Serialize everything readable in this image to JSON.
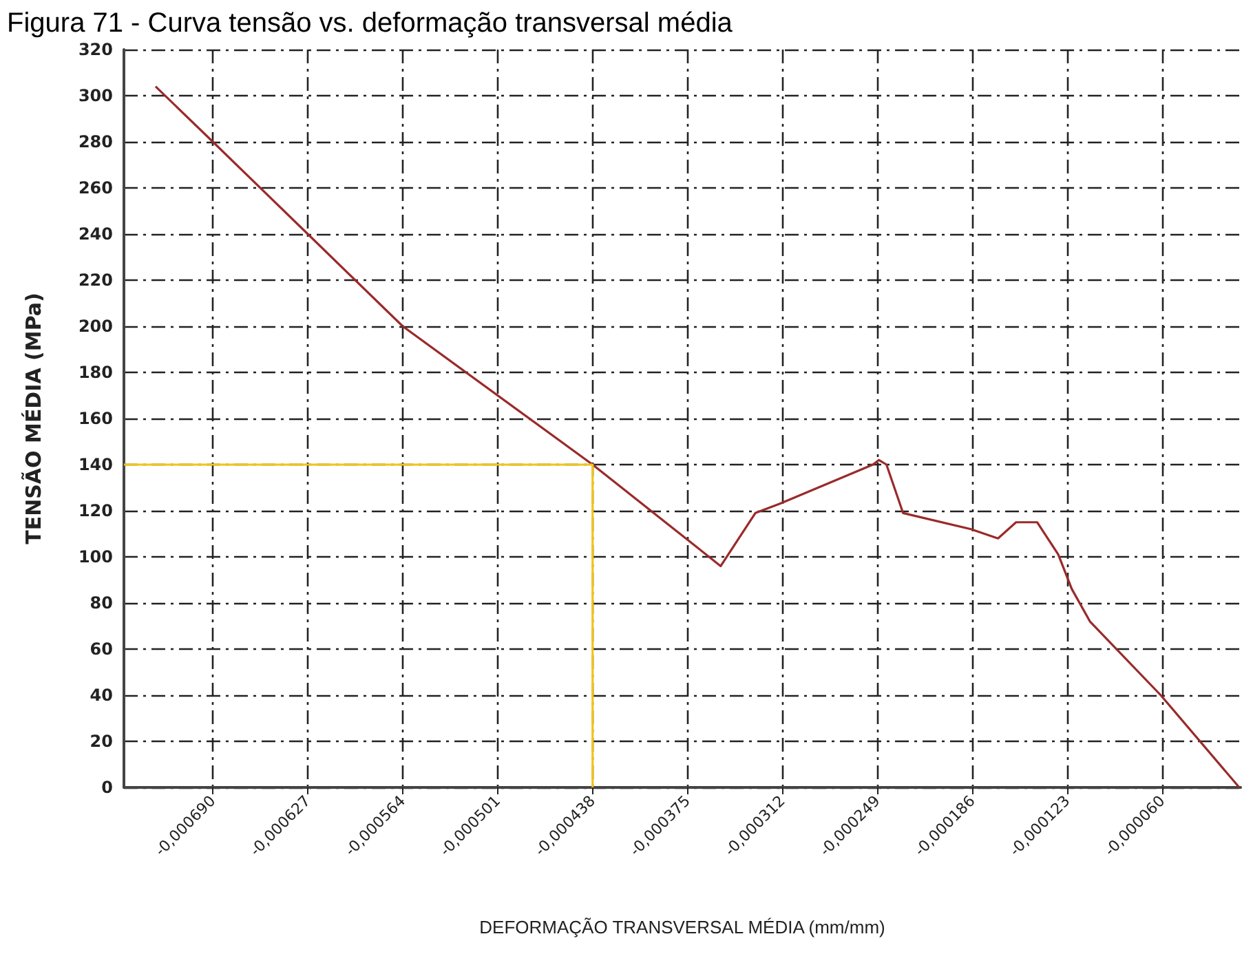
{
  "chart_data": {
    "type": "line",
    "title": "Figura 71 - Curva tensão vs. deformação transversal média",
    "xlabel": "DEFORMAÇÃO TRANSVERSAL MÉDIA (mm/mm)",
    "ylabel": "TENSÃO MÉDIA (MPa)",
    "xlim": [
      -0.000749,
      -8e-06
    ],
    "ylim": [
      0,
      320
    ],
    "xticks": [
      {
        "value": -0.00069,
        "label": "-0,000690"
      },
      {
        "value": -0.000627,
        "label": "-0,000627"
      },
      {
        "value": -0.000564,
        "label": "-0,000564"
      },
      {
        "value": -0.000501,
        "label": "-0,000501"
      },
      {
        "value": -0.000438,
        "label": "-0,000438"
      },
      {
        "value": -0.000375,
        "label": "-0,000375"
      },
      {
        "value": -0.000312,
        "label": "-0,000312"
      },
      {
        "value": -0.000249,
        "label": "-0,000249"
      },
      {
        "value": -0.000186,
        "label": "-0,000186"
      },
      {
        "value": -0.000123,
        "label": "-0,000123"
      },
      {
        "value": -6e-05,
        "label": "-0,000060"
      }
    ],
    "yticks": [
      0,
      20,
      40,
      60,
      80,
      100,
      120,
      140,
      160,
      180,
      200,
      220,
      240,
      260,
      280,
      300,
      320
    ],
    "grid": true,
    "marker": "none",
    "series": [
      {
        "color": "#9a2a2a",
        "x": [
          -0.000728,
          -0.00069,
          -0.000627,
          -0.000564,
          -0.000438,
          -0.000353,
          -0.00033,
          -0.000314,
          -0.000252,
          -0.000248,
          -0.000243,
          -0.000232,
          -0.000187,
          -0.000169,
          -0.000157,
          -0.000143,
          -0.000129,
          -0.00012,
          -0.000108,
          -6.1e-05,
          -8.9e-06
        ],
        "values": [
          304,
          280,
          240,
          200,
          140,
          96,
          119,
          123,
          140,
          142,
          140,
          119,
          112,
          108,
          115,
          115,
          101,
          86,
          72,
          40,
          0
        ]
      },
      {
        "color": "#f0c419",
        "x": [
          -0.000749,
          -0.000438,
          -0.000438
        ],
        "values": [
          140,
          140,
          0
        ]
      }
    ]
  }
}
